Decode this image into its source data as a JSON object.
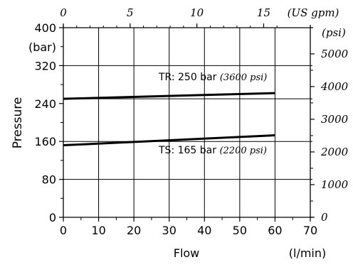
{
  "chart_data": {
    "type": "line",
    "ylabel": "Pressure",
    "xlabel": "Flow",
    "x_unit": "(l/min)",
    "y_unit": "(bar)",
    "top_unit": "(US gpm)",
    "right_unit": "(psi)",
    "xlim": [
      0,
      70
    ],
    "ylim": [
      0,
      400
    ],
    "x_ticks": [
      "0",
      "10",
      "20",
      "30",
      "40",
      "50",
      "60",
      "70"
    ],
    "y_ticks": [
      "0",
      "80",
      "160",
      "240",
      "320",
      "400"
    ],
    "top_ticks": [
      "0",
      "5",
      "10",
      "15"
    ],
    "right_ticks": [
      "0",
      "1000",
      "2000",
      "3000",
      "4000",
      "5000"
    ],
    "top_tick_values_gpm": [
      0,
      5,
      10,
      15
    ],
    "right_tick_values_psi": [
      0,
      1000,
      2000,
      3000,
      4000,
      5000
    ],
    "grid_y": [
      80,
      160,
      250,
      320
    ],
    "series": [
      {
        "x": [
          0,
          60
        ],
        "y": [
          250,
          262
        ],
        "label": "TR: 250 bar",
        "label_alt": "(3600 psi)"
      },
      {
        "x": [
          0,
          60
        ],
        "y": [
          152,
          173
        ],
        "label": "TS: 165 bar",
        "label_alt": "(2200 psi)"
      }
    ],
    "grid": true
  }
}
